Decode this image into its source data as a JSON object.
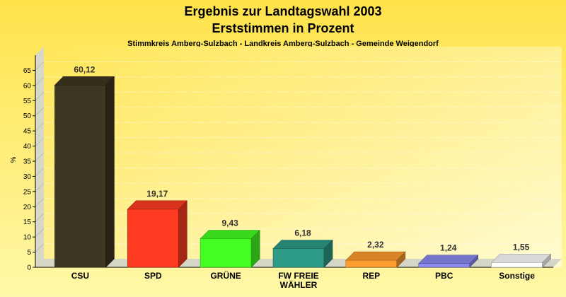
{
  "chart_data": {
    "type": "bar",
    "title": "Ergebnis zur Landtagswahl 2003",
    "title2": "Erststimmen in Prozent",
    "subtitle": "Stimmkreis Amberg-Sulzbach - Landkreis Amberg-Sulzbach - Gemeinde Weigendorf",
    "ylabel": "%",
    "ylim": [
      0,
      70
    ],
    "yticks": [
      0,
      5,
      10,
      15,
      20,
      25,
      30,
      35,
      40,
      45,
      50,
      55,
      60,
      65
    ],
    "grid": true,
    "categories": [
      [
        "CSU"
      ],
      [
        "SPD"
      ],
      [
        "GRÜNE"
      ],
      [
        "FW FREIE",
        "WÄHLER"
      ],
      [
        "REP"
      ],
      [
        "PBC"
      ],
      [
        "Sonstige"
      ]
    ],
    "values": [
      60.12,
      19.17,
      9.43,
      6.18,
      2.32,
      1.24,
      1.55
    ],
    "value_labels": [
      "60,12",
      "19,17",
      "9,43",
      "6,18",
      "2,32",
      "1,24",
      "1,55"
    ],
    "colors": [
      "#3d3620",
      "#ff3b22",
      "#44ff22",
      "#2e9b86",
      "#ff9c2e",
      "#8a8af0",
      "#ffffff"
    ]
  }
}
